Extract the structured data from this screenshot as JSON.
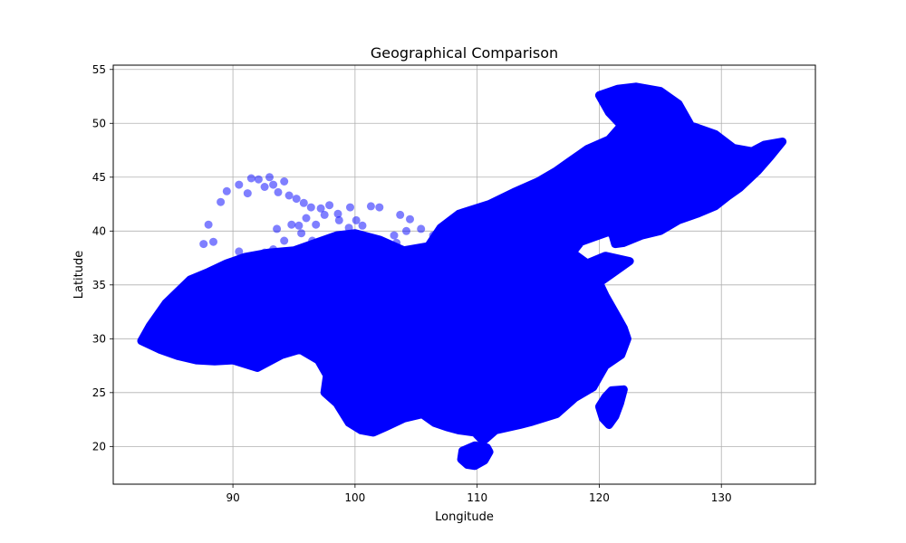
{
  "chart_data": {
    "type": "scatter",
    "title": "Geographical Comparison",
    "xlabel": "Longitude",
    "ylabel": "Latitude",
    "xlim": [
      80.2,
      137.7
    ],
    "ylim": [
      16.5,
      55.4
    ],
    "xticks": [
      90,
      100,
      110,
      120,
      130
    ],
    "yticks": [
      20,
      25,
      30,
      35,
      40,
      45,
      50,
      55
    ],
    "grid": true,
    "legend": "none",
    "marker_color": "#0000ff",
    "marker_alpha": 0.5,
    "regions": [
      {
        "region": "mainland",
        "outline": [
          [
            82.5,
            29.8
          ],
          [
            83.2,
            31.2
          ],
          [
            84.5,
            33.3
          ],
          [
            86.5,
            35.5
          ],
          [
            88.0,
            36.2
          ],
          [
            89.5,
            37.0
          ],
          [
            91.0,
            37.6
          ],
          [
            93.0,
            38.0
          ],
          [
            95.0,
            38.2
          ],
          [
            97.0,
            39.0
          ],
          [
            98.5,
            39.6
          ],
          [
            100.0,
            39.8
          ],
          [
            102.0,
            39.2
          ],
          [
            104.0,
            38.2
          ],
          [
            106.0,
            38.6
          ],
          [
            107.0,
            40.3
          ],
          [
            108.5,
            41.6
          ],
          [
            111.0,
            42.5
          ],
          [
            113.0,
            43.6
          ],
          [
            115.0,
            44.6
          ],
          [
            116.5,
            45.6
          ],
          [
            117.5,
            46.4
          ],
          [
            119.0,
            47.6
          ],
          [
            120.8,
            48.5
          ],
          [
            121.8,
            49.8
          ],
          [
            120.8,
            51.0
          ],
          [
            120.0,
            52.6
          ],
          [
            121.5,
            53.2
          ],
          [
            123.0,
            53.4
          ],
          [
            125.0,
            53.0
          ],
          [
            126.5,
            51.8
          ],
          [
            127.5,
            49.8
          ],
          [
            129.5,
            49.0
          ],
          [
            131.0,
            47.7
          ],
          [
            132.5,
            47.4
          ],
          [
            133.5,
            48.0
          ],
          [
            135.0,
            48.3
          ],
          [
            134.0,
            46.9
          ],
          [
            133.0,
            45.6
          ],
          [
            131.5,
            44.0
          ],
          [
            130.5,
            43.2
          ],
          [
            129.5,
            42.3
          ],
          [
            128.0,
            41.6
          ],
          [
            126.5,
            41.0
          ],
          [
            125.0,
            40.0
          ],
          [
            123.5,
            39.6
          ],
          [
            122.0,
            38.9
          ],
          [
            121.3,
            38.8
          ],
          [
            121.0,
            40.0
          ],
          [
            119.5,
            39.4
          ],
          [
            118.5,
            39.0
          ],
          [
            117.8,
            38.0
          ],
          [
            119.0,
            37.0
          ],
          [
            120.5,
            37.7
          ],
          [
            122.5,
            37.2
          ],
          [
            121.0,
            36.0
          ],
          [
            120.0,
            35.2
          ],
          [
            120.5,
            34.0
          ],
          [
            121.5,
            32.0
          ],
          [
            122.0,
            31.0
          ],
          [
            122.3,
            30.0
          ],
          [
            121.8,
            28.5
          ],
          [
            120.5,
            27.5
          ],
          [
            120.0,
            26.5
          ],
          [
            119.5,
            25.5
          ],
          [
            118.0,
            24.5
          ],
          [
            116.5,
            23.0
          ],
          [
            114.5,
            22.3
          ],
          [
            113.5,
            22.0
          ],
          [
            111.5,
            21.5
          ],
          [
            110.5,
            20.5
          ],
          [
            109.8,
            21.3
          ],
          [
            108.5,
            21.5
          ],
          [
            107.5,
            21.8
          ],
          [
            106.5,
            22.2
          ],
          [
            105.5,
            23.0
          ],
          [
            104.0,
            22.6
          ],
          [
            102.5,
            21.8
          ],
          [
            101.5,
            21.3
          ],
          [
            100.5,
            21.5
          ],
          [
            99.5,
            22.2
          ],
          [
            98.5,
            24.0
          ],
          [
            97.5,
            25.0
          ],
          [
            97.7,
            26.6
          ],
          [
            97.0,
            28.0
          ],
          [
            95.5,
            29.0
          ],
          [
            94.0,
            28.5
          ],
          [
            92.0,
            27.3
          ],
          [
            90.0,
            28.0
          ],
          [
            88.5,
            27.9
          ],
          [
            87.0,
            28.0
          ],
          [
            85.5,
            28.4
          ],
          [
            84.0,
            29.0
          ],
          [
            82.5,
            29.8
          ]
        ]
      },
      {
        "region": "taiwan",
        "outline": [
          [
            121.0,
            25.2
          ],
          [
            122.0,
            25.3
          ],
          [
            121.7,
            24.0
          ],
          [
            121.3,
            22.8
          ],
          [
            120.8,
            22.0
          ],
          [
            120.3,
            22.6
          ],
          [
            120.0,
            23.7
          ],
          [
            120.5,
            24.6
          ],
          [
            121.0,
            25.2
          ]
        ]
      },
      {
        "region": "hainan",
        "outline": [
          [
            108.8,
            19.6
          ],
          [
            109.8,
            20.1
          ],
          [
            110.8,
            19.9
          ],
          [
            111.0,
            19.5
          ],
          [
            110.6,
            18.7
          ],
          [
            109.8,
            18.2
          ],
          [
            109.2,
            18.3
          ],
          [
            108.7,
            18.8
          ],
          [
            108.8,
            19.6
          ]
        ]
      },
      {
        "region": "scattered points",
        "points": [
          [
            87.6,
            38.8
          ],
          [
            88.0,
            40.6
          ],
          [
            88.4,
            39.0
          ],
          [
            89.0,
            42.7
          ],
          [
            89.5,
            43.7
          ],
          [
            90.5,
            44.3
          ],
          [
            91.2,
            43.5
          ],
          [
            91.5,
            44.9
          ],
          [
            92.1,
            44.8
          ],
          [
            92.6,
            44.1
          ],
          [
            93.0,
            45.0
          ],
          [
            93.3,
            44.3
          ],
          [
            93.7,
            43.6
          ],
          [
            94.2,
            44.6
          ],
          [
            94.6,
            43.3
          ],
          [
            95.2,
            43.0
          ],
          [
            95.8,
            42.6
          ],
          [
            96.4,
            42.2
          ],
          [
            97.2,
            42.1
          ],
          [
            97.9,
            42.4
          ],
          [
            98.6,
            41.6
          ],
          [
            99.6,
            42.2
          ],
          [
            100.1,
            41.0
          ],
          [
            101.3,
            42.3
          ],
          [
            102.0,
            42.2
          ],
          [
            103.7,
            41.5
          ],
          [
            104.5,
            41.1
          ],
          [
            104.2,
            40.0
          ],
          [
            103.2,
            39.6
          ],
          [
            101.8,
            39.2
          ],
          [
            100.6,
            40.5
          ],
          [
            99.5,
            40.3
          ],
          [
            98.7,
            41.0
          ],
          [
            97.5,
            41.5
          ],
          [
            96.8,
            40.6
          ],
          [
            96.0,
            41.2
          ],
          [
            95.4,
            40.5
          ],
          [
            94.8,
            40.6
          ],
          [
            93.6,
            40.2
          ],
          [
            94.2,
            39.1
          ],
          [
            93.3,
            38.3
          ],
          [
            92.6,
            38.0
          ],
          [
            91.3,
            37.4
          ],
          [
            90.5,
            38.1
          ],
          [
            91.8,
            37.7
          ],
          [
            95.6,
            39.8
          ],
          [
            96.5,
            39.1
          ],
          [
            105.4,
            40.2
          ],
          [
            106.4,
            39.6
          ],
          [
            103.4,
            38.9
          ]
        ]
      }
    ]
  }
}
